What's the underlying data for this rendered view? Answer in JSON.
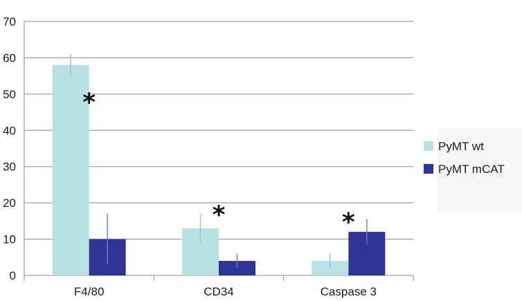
{
  "chart_data": {
    "type": "bar",
    "categories": [
      "F4/80",
      "CD34",
      "Caspase 3"
    ],
    "series": [
      {
        "name": "PyMT wt",
        "values": [
          58,
          13,
          4
        ],
        "errors": [
          3,
          4,
          2
        ],
        "color": "#b7e1e3"
      },
      {
        "name": "PyMT mCAT",
        "values": [
          10,
          4,
          12
        ],
        "errors": [
          7,
          2,
          3.5
        ],
        "color": "#2f3596"
      }
    ],
    "ylim": [
      0,
      70
    ],
    "yticks": [
      0,
      10,
      20,
      30,
      40,
      50,
      60,
      70
    ],
    "ytick_labels": [
      "0",
      "10",
      "20",
      "30",
      "40",
      "50",
      "60",
      "70"
    ],
    "grid": true,
    "legend": "right",
    "annotations": [
      {
        "text": "*",
        "category": "F4/80",
        "y": 50
      },
      {
        "text": "*",
        "category": "CD34",
        "y": 19
      },
      {
        "text": "*",
        "category": "Caspase 3",
        "y": 17
      }
    ],
    "title": "",
    "xlabel": "",
    "ylabel": ""
  }
}
